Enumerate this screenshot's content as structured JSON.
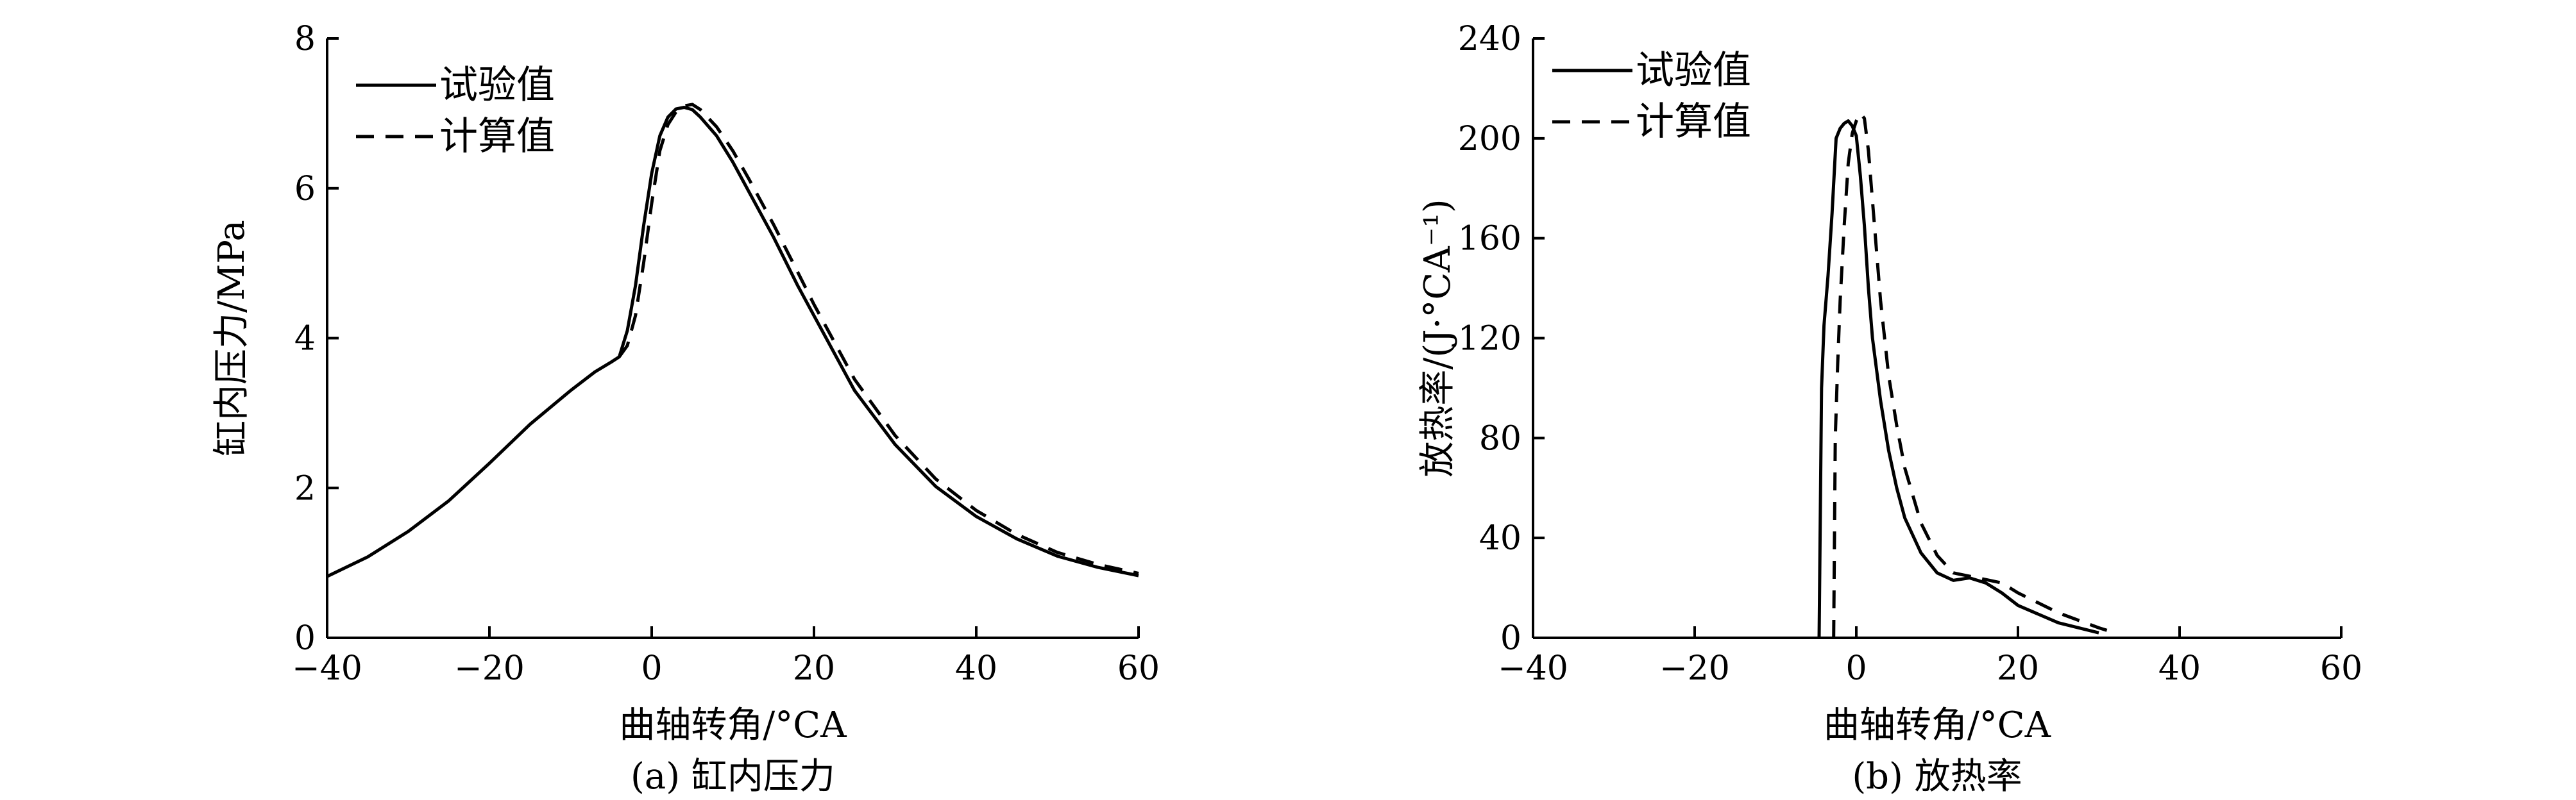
{
  "chart_data": [
    {
      "type": "line",
      "caption": "(a) 缸内压力",
      "xlabel": "曲轴转角/°CA",
      "ylabel": "缸内压力/MPa",
      "xlim": [
        -40,
        60
      ],
      "ylim": [
        0,
        8
      ],
      "xticks": [
        -40,
        -20,
        0,
        20,
        40,
        60
      ],
      "yticks": [
        0,
        2,
        4,
        6,
        8
      ],
      "xtick_labels": [
        "−40",
        "−20",
        "0",
        "20",
        "40",
        "60"
      ],
      "ytick_labels": [
        "0",
        "2",
        "4",
        "6",
        "8"
      ],
      "legend": "top-left",
      "series": [
        {
          "name": "试验值",
          "style": "solid",
          "x": [
            -40,
            -35,
            -30,
            -25,
            -20,
            -15,
            -10,
            -7,
            -5,
            -4,
            -3,
            -2,
            -1,
            0,
            1,
            2,
            3,
            4,
            5,
            6,
            8,
            10,
            12,
            15,
            18,
            20,
            25,
            30,
            35,
            40,
            45,
            50,
            55,
            60
          ],
          "y": [
            0.82,
            1.08,
            1.42,
            1.83,
            2.33,
            2.85,
            3.3,
            3.55,
            3.68,
            3.75,
            4.1,
            4.7,
            5.5,
            6.2,
            6.7,
            6.95,
            7.06,
            7.08,
            7.05,
            6.95,
            6.7,
            6.35,
            5.95,
            5.35,
            4.7,
            4.3,
            3.3,
            2.58,
            2.02,
            1.62,
            1.32,
            1.09,
            0.94,
            0.83
          ]
        },
        {
          "name": "计算值",
          "style": "dashed",
          "x": [
            -4,
            -3,
            -2,
            -1,
            0,
            1,
            2,
            3,
            4,
            5,
            6,
            8,
            10,
            12,
            15,
            18,
            20,
            25,
            30,
            35,
            40,
            45,
            50,
            55,
            60
          ],
          "y": [
            3.75,
            3.9,
            4.3,
            5.0,
            5.8,
            6.5,
            6.85,
            7.02,
            7.1,
            7.12,
            7.05,
            6.82,
            6.5,
            6.12,
            5.52,
            4.88,
            4.45,
            3.45,
            2.7,
            2.12,
            1.7,
            1.38,
            1.14,
            0.98,
            0.86
          ]
        }
      ]
    },
    {
      "type": "line",
      "caption": "(b) 放热率",
      "xlabel": "曲轴转角/°CA",
      "ylabel": "放热率/(J·°CA⁻¹)",
      "xlim": [
        -40,
        60
      ],
      "ylim": [
        0,
        240
      ],
      "xticks": [
        -40,
        -20,
        0,
        20,
        40,
        60
      ],
      "yticks": [
        0,
        40,
        80,
        120,
        160,
        200,
        240
      ],
      "xtick_labels": [
        "−40",
        "−20",
        "0",
        "20",
        "40",
        "60"
      ],
      "ytick_labels": [
        "0",
        "40",
        "80",
        "120",
        "160",
        "200",
        "240"
      ],
      "legend": "top-left",
      "series": [
        {
          "name": "试验值",
          "style": "solid",
          "x": [
            -4.6,
            -4.3,
            -4,
            -3.5,
            -3,
            -2.5,
            -2,
            -1.5,
            -1,
            -0.5,
            0,
            0.5,
            1,
            1.5,
            2,
            3,
            4,
            5,
            6,
            8,
            10,
            12,
            14,
            16,
            18,
            20,
            25,
            30
          ],
          "y": [
            0,
            100,
            125,
            145,
            170,
            200,
            204,
            206,
            207,
            205,
            201,
            185,
            165,
            140,
            120,
            95,
            75,
            60,
            48,
            34,
            26,
            23,
            24,
            22,
            18,
            13,
            6,
            2
          ]
        },
        {
          "name": "计算值",
          "style": "dashed",
          "x": [
            -2.8,
            -2.6,
            -2.3,
            -2,
            -1.5,
            -1,
            -0.5,
            0,
            0.5,
            1,
            1.5,
            2,
            2.5,
            3,
            4,
            5,
            6,
            8,
            10,
            12,
            15,
            18,
            20,
            25,
            30,
            31
          ],
          "y": [
            0,
            80,
            110,
            135,
            165,
            190,
            202,
            207,
            210,
            208,
            195,
            175,
            155,
            135,
            105,
            85,
            68,
            46,
            33,
            26,
            24,
            22,
            18,
            10,
            4,
            3
          ]
        }
      ]
    }
  ]
}
